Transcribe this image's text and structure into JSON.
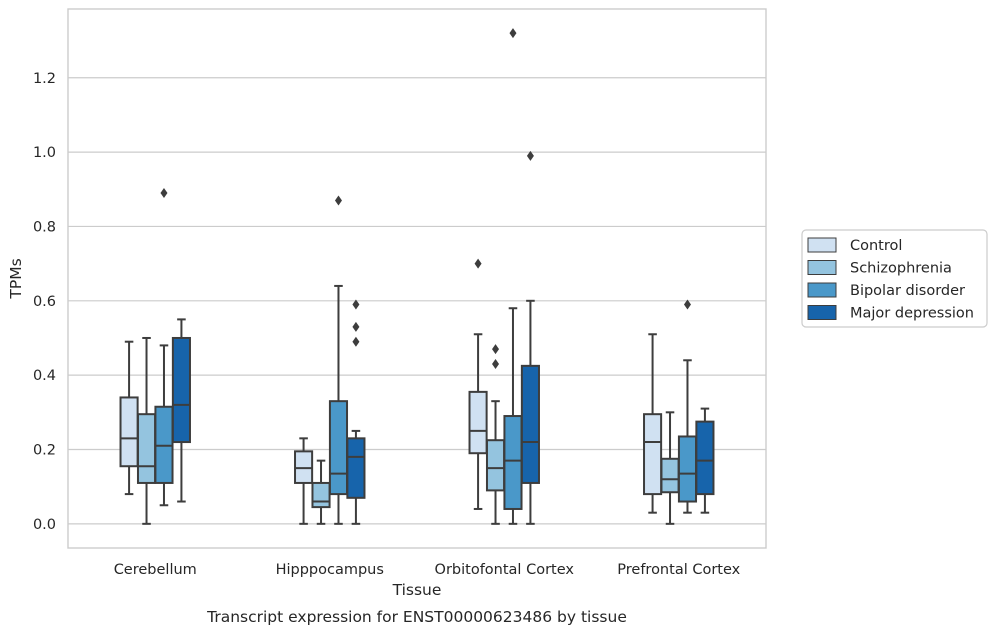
{
  "chart_data": {
    "type": "box",
    "title": "Transcript expression for ENST00000623486 by tissue",
    "xlabel": "Tissue",
    "ylabel": "TPMs",
    "ylim": [
      -0.065,
      1.385
    ],
    "yticks": [
      0.0,
      0.2,
      0.4,
      0.6,
      0.8,
      1.0,
      1.2
    ],
    "ytick_labels": [
      "0.0",
      "0.2",
      "0.4",
      "0.6",
      "0.8",
      "1.0",
      "1.2"
    ],
    "grid": "horizontal",
    "legend_position": "right",
    "categories": [
      "Cerebellum",
      "Hipppocampus",
      "Orbitofontal Cortex",
      "Prefrontal Cortex"
    ],
    "series": [
      {
        "name": "Control",
        "color": "#d0e1f2",
        "boxes": [
          {
            "whisker_low": 0.08,
            "q1": 0.155,
            "median": 0.23,
            "q3": 0.34,
            "whisker_high": 0.49,
            "outliers": []
          },
          {
            "whisker_low": 0.0,
            "q1": 0.11,
            "median": 0.15,
            "q3": 0.195,
            "whisker_high": 0.23,
            "outliers": []
          },
          {
            "whisker_low": 0.04,
            "q1": 0.19,
            "median": 0.25,
            "q3": 0.355,
            "whisker_high": 0.51,
            "outliers": [
              0.7
            ]
          },
          {
            "whisker_low": 0.03,
            "q1": 0.08,
            "median": 0.22,
            "q3": 0.295,
            "whisker_high": 0.51,
            "outliers": []
          }
        ]
      },
      {
        "name": "Schizophrenia",
        "color": "#94c4df",
        "boxes": [
          {
            "whisker_low": 0.0,
            "q1": 0.11,
            "median": 0.155,
            "q3": 0.295,
            "whisker_high": 0.5,
            "outliers": []
          },
          {
            "whisker_low": 0.0,
            "q1": 0.045,
            "median": 0.06,
            "q3": 0.11,
            "whisker_high": 0.17,
            "outliers": []
          },
          {
            "whisker_low": 0.0,
            "q1": 0.09,
            "median": 0.15,
            "q3": 0.225,
            "whisker_high": 0.33,
            "outliers": [
              0.43,
              0.47
            ]
          },
          {
            "whisker_low": 0.0,
            "q1": 0.085,
            "median": 0.12,
            "q3": 0.175,
            "whisker_high": 0.3,
            "outliers": []
          }
        ]
      },
      {
        "name": "Bipolar disorder",
        "color": "#4a98c9",
        "boxes": [
          {
            "whisker_low": 0.05,
            "q1": 0.11,
            "median": 0.21,
            "q3": 0.315,
            "whisker_high": 0.48,
            "outliers": [
              0.89
            ]
          },
          {
            "whisker_low": 0.0,
            "q1": 0.08,
            "median": 0.135,
            "q3": 0.33,
            "whisker_high": 0.64,
            "outliers": [
              0.87
            ]
          },
          {
            "whisker_low": 0.0,
            "q1": 0.04,
            "median": 0.17,
            "q3": 0.29,
            "whisker_high": 0.58,
            "outliers": [
              1.32
            ]
          },
          {
            "whisker_low": 0.03,
            "q1": 0.06,
            "median": 0.135,
            "q3": 0.235,
            "whisker_high": 0.44,
            "outliers": [
              0.59
            ]
          }
        ]
      },
      {
        "name": "Major depression",
        "color": "#1764ab",
        "boxes": [
          {
            "whisker_low": 0.06,
            "q1": 0.22,
            "median": 0.32,
            "q3": 0.5,
            "whisker_high": 0.55,
            "outliers": []
          },
          {
            "whisker_low": 0.0,
            "q1": 0.07,
            "median": 0.18,
            "q3": 0.23,
            "whisker_high": 0.25,
            "outliers": [
              0.49,
              0.53,
              0.59
            ]
          },
          {
            "whisker_low": 0.0,
            "q1": 0.11,
            "median": 0.22,
            "q3": 0.425,
            "whisker_high": 0.6,
            "outliers": [
              0.99
            ]
          },
          {
            "whisker_low": 0.03,
            "q1": 0.08,
            "median": 0.17,
            "q3": 0.275,
            "whisker_high": 0.31,
            "outliers": []
          }
        ]
      }
    ]
  }
}
